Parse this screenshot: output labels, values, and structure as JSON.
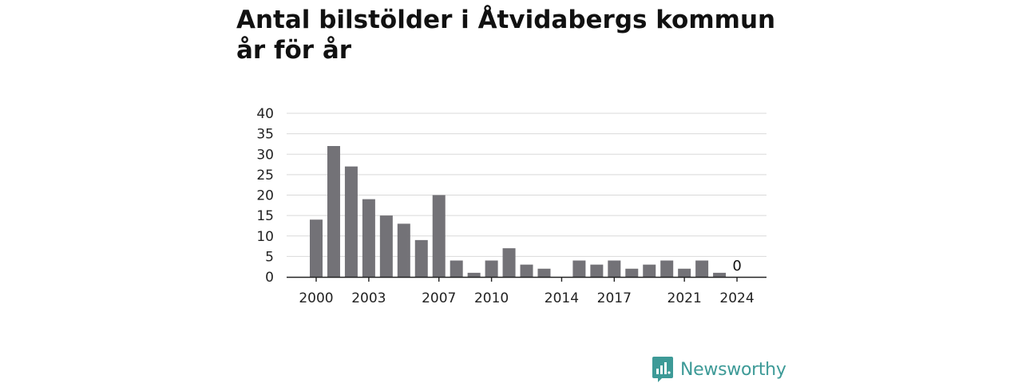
{
  "title": "Antal bilstölder i Åtvidabergs kommun år för år",
  "brand": {
    "name": "Newsworthy",
    "icon": "newsworthy-logo-icon",
    "color": "#3d9a97"
  },
  "chart_data": {
    "type": "bar",
    "title": "Antal bilstölder i Åtvidabergs kommun år för år",
    "xlabel": "",
    "ylabel": "",
    "x": [
      2000,
      2001,
      2002,
      2003,
      2004,
      2005,
      2006,
      2007,
      2008,
      2009,
      2010,
      2011,
      2012,
      2013,
      2014,
      2015,
      2016,
      2017,
      2018,
      2019,
      2020,
      2021,
      2022,
      2023,
      2024
    ],
    "values": [
      14,
      32,
      27,
      19,
      15,
      13,
      9,
      20,
      4,
      1,
      4,
      7,
      3,
      2,
      0,
      4,
      3,
      4,
      2,
      3,
      4,
      2,
      4,
      1,
      0
    ],
    "x_tick_labels": [
      2000,
      2003,
      2007,
      2010,
      2014,
      2017,
      2021,
      2024
    ],
    "y_ticks": [
      0,
      5,
      10,
      15,
      20,
      25,
      30,
      35,
      40
    ],
    "ylim": [
      0,
      40
    ],
    "grid": true,
    "annotations": [
      {
        "x": 2024,
        "text": "0"
      }
    ],
    "bar_color": "#737277",
    "grid_color": "#d9d9d9",
    "axis_color": "#222222"
  }
}
